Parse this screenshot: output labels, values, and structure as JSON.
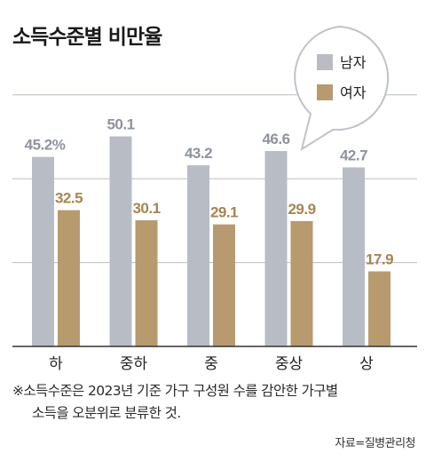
{
  "title": "소득수준별 비만율",
  "chart_data": {
    "type": "bar",
    "title": "소득수준별 비만율",
    "categories": [
      "하",
      "중하",
      "중",
      "중상",
      "상"
    ],
    "series": [
      {
        "name": "남자",
        "values": [
          45.2,
          50.1,
          43.2,
          46.6,
          42.7
        ],
        "labels": [
          "45.2%",
          "50.1",
          "43.2",
          "46.6",
          "42.7"
        ],
        "color": "#b8bcc4"
      },
      {
        "name": "여자",
        "values": [
          32.5,
          30.1,
          29.1,
          29.9,
          17.9
        ],
        "labels": [
          "32.5",
          "30.1",
          "29.1",
          "29.9",
          "17.9"
        ],
        "color": "#b79a6e"
      }
    ],
    "ylim": [
      0,
      60
    ],
    "grid": true,
    "legend": "top-right",
    "xlabel": "",
    "ylabel": ""
  },
  "footnote": {
    "line1": "※소득수준은 2023년 기준 가구 구성원 수를 감안한 가구별",
    "line2": "소득을 오분위로 분류한 것."
  },
  "source": "자료=질병관리청",
  "colors": {
    "male_label": "#8e939c",
    "female_label": "#a88452",
    "grid": "#b9bdc4",
    "axis": "#333333"
  }
}
